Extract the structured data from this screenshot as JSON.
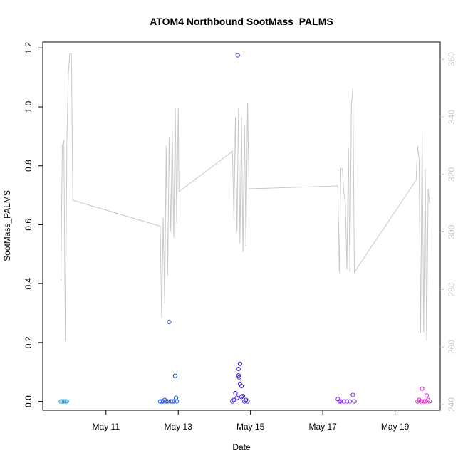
{
  "chart_data": {
    "type": "scatter",
    "title": "ATOM4 Northbound SootMass_PALMS",
    "xlabel": "Date",
    "ylabel": "SootMass_PALMS",
    "x_unit": "date (May 2018)",
    "xlim": [
      "2018-05-09 06:00",
      "2018-05-20 06:00"
    ],
    "ylim": [
      -0.03,
      1.22
    ],
    "y2lim": [
      238,
      366
    ],
    "grid": false,
    "x_ticks": [
      {
        "x": "2018-05-11",
        "label": "May 11"
      },
      {
        "x": "2018-05-13",
        "label": "May 13"
      },
      {
        "x": "2018-05-15",
        "label": "May 15"
      },
      {
        "x": "2018-05-17",
        "label": "May 17"
      },
      {
        "x": "2018-05-19",
        "label": "May 19"
      }
    ],
    "y_ticks": [
      "0.0",
      "0.2",
      "0.4",
      "0.6",
      "0.8",
      "1.0",
      "1.2"
    ],
    "y2_ticks": [
      "240",
      "260",
      "280",
      "300",
      "320",
      "340",
      "360"
    ],
    "series": [
      {
        "kind": "points",
        "color": "#29a3e0",
        "points": [
          [
            "2018-05-09 18:00",
            0
          ],
          [
            "2018-05-09 19:00",
            0
          ],
          [
            "2018-05-09 20:00",
            0
          ],
          [
            "2018-05-09 21:00",
            0
          ],
          [
            "2018-05-09 22:00",
            0
          ]
        ]
      },
      {
        "kind": "points",
        "color": "#1f52e6",
        "points": [
          [
            "2018-05-12 12:00",
            0
          ],
          [
            "2018-05-12 13:00",
            0
          ],
          [
            "2018-05-12 14:00",
            0
          ],
          [
            "2018-05-12 15:00",
            0.005
          ],
          [
            "2018-05-12 16:00",
            0
          ],
          [
            "2018-05-12 17:00",
            0
          ],
          [
            "2018-05-12 18:00",
            0.27
          ],
          [
            "2018-05-12 19:00",
            0
          ],
          [
            "2018-05-12 20:00",
            0
          ],
          [
            "2018-05-12 21:00",
            0
          ],
          [
            "2018-05-12 22:00",
            0.087
          ],
          [
            "2018-05-12 22:30",
            0.012
          ],
          [
            "2018-05-12 23:00",
            0
          ]
        ]
      },
      {
        "kind": "points",
        "color": "#3a1fe0",
        "points": [
          [
            "2018-05-14 12:00",
            0
          ],
          [
            "2018-05-14 13:00",
            0.005
          ],
          [
            "2018-05-14 14:00",
            0.028
          ],
          [
            "2018-05-14 15:00",
            0.012
          ],
          [
            "2018-05-14 15:30",
            1.175
          ],
          [
            "2018-05-14 16:00",
            0.11
          ],
          [
            "2018-05-14 16:00",
            0.088
          ],
          [
            "2018-05-14 16:30",
            0.082
          ],
          [
            "2018-05-14 17:00",
            0.128
          ],
          [
            "2018-05-14 17:00",
            0.06
          ],
          [
            "2018-05-14 18:00",
            0.052
          ],
          [
            "2018-05-14 18:00",
            0.015
          ],
          [
            "2018-05-14 19:00",
            0.018
          ],
          [
            "2018-05-14 20:00",
            0
          ],
          [
            "2018-05-14 21:00",
            0.005
          ],
          [
            "2018-05-14 22:00",
            0
          ]
        ]
      },
      {
        "kind": "points",
        "color": "#8a2be2",
        "points": [
          [
            "2018-05-17 10:00",
            0.008
          ],
          [
            "2018-05-17 11:00",
            0
          ],
          [
            "2018-05-17 12:00",
            0
          ],
          [
            "2018-05-17 14:00",
            0
          ],
          [
            "2018-05-17 16:00",
            0
          ],
          [
            "2018-05-17 18:00",
            0
          ],
          [
            "2018-05-17 20:00",
            0.022
          ],
          [
            "2018-05-17 21:00",
            0
          ]
        ]
      },
      {
        "kind": "points",
        "color": "#e01fc8",
        "points": [
          [
            "2018-05-19 15:00",
            0
          ],
          [
            "2018-05-19 16:00",
            0.005
          ],
          [
            "2018-05-19 17:00",
            0
          ],
          [
            "2018-05-19 18:00",
            0.043
          ],
          [
            "2018-05-19 19:00",
            0
          ],
          [
            "2018-05-19 20:00",
            0
          ],
          [
            "2018-05-19 21:00",
            0.02
          ],
          [
            "2018-05-19 22:00",
            0.005
          ],
          [
            "2018-05-19 23:00",
            0
          ]
        ]
      },
      {
        "kind": "line",
        "axis": "right",
        "color": "#c8c8c8",
        "points": [
          [
            "2018-05-09 18:00",
            283
          ],
          [
            "2018-05-09 19:00",
            330
          ],
          [
            "2018-05-09 20:00",
            332
          ],
          [
            "2018-05-09 21:00",
            262
          ],
          [
            "2018-05-09 22:00",
            330
          ],
          [
            "2018-05-09 23:00",
            355
          ],
          [
            "2018-05-10 00:00",
            362
          ],
          [
            "2018-05-10 01:00",
            362
          ],
          [
            "2018-05-10 02:00",
            311
          ],
          [
            "2018-05-12 12:00",
            302
          ],
          [
            "2018-05-12 13:00",
            270
          ],
          [
            "2018-05-12 14:00",
            305
          ],
          [
            "2018-05-12 15:00",
            275
          ],
          [
            "2018-05-12 16:00",
            330
          ],
          [
            "2018-05-12 17:00",
            285
          ],
          [
            "2018-05-12 18:00",
            333
          ],
          [
            "2018-05-12 19:00",
            300
          ],
          [
            "2018-05-12 20:00",
            335
          ],
          [
            "2018-05-12 21:00",
            298
          ],
          [
            "2018-05-12 22:00",
            343
          ],
          [
            "2018-05-12 23:00",
            303
          ],
          [
            "2018-05-13 00:00",
            343
          ],
          [
            "2018-05-13 00:30",
            314
          ],
          [
            "2018-05-14 12:00",
            328
          ],
          [
            "2018-05-14 13:00",
            304
          ],
          [
            "2018-05-14 14:00",
            340
          ],
          [
            "2018-05-14 15:00",
            300
          ],
          [
            "2018-05-14 16:00",
            343
          ],
          [
            "2018-05-14 17:00",
            296
          ],
          [
            "2018-05-14 18:00",
            340
          ],
          [
            "2018-05-14 19:00",
            293
          ],
          [
            "2018-05-14 20:00",
            337
          ],
          [
            "2018-05-14 21:00",
            295
          ],
          [
            "2018-05-14 22:00",
            345
          ],
          [
            "2018-05-14 23:00",
            315
          ],
          [
            "2018-05-17 10:00",
            316
          ],
          [
            "2018-05-17 11:00",
            286
          ],
          [
            "2018-05-17 12:00",
            322
          ],
          [
            "2018-05-17 13:00",
            322
          ],
          [
            "2018-05-17 14:00",
            314
          ],
          [
            "2018-05-17 15:00",
            310
          ],
          [
            "2018-05-17 16:00",
            287
          ],
          [
            "2018-05-17 17:00",
            329
          ],
          [
            "2018-05-17 18:00",
            286
          ],
          [
            "2018-05-17 19:00",
            344
          ],
          [
            "2018-05-17 20:00",
            350
          ],
          [
            "2018-05-17 21:00",
            286
          ],
          [
            "2018-05-19 14:00",
            318
          ],
          [
            "2018-05-19 15:00",
            330
          ],
          [
            "2018-05-19 16:00",
            325
          ],
          [
            "2018-05-19 17:00",
            265
          ],
          [
            "2018-05-19 18:00",
            335
          ],
          [
            "2018-05-19 19:00",
            265
          ],
          [
            "2018-05-19 20:00",
            322
          ],
          [
            "2018-05-19 21:00",
            262
          ],
          [
            "2018-05-19 22:00",
            315
          ],
          [
            "2018-05-19 23:00",
            310
          ]
        ]
      }
    ]
  }
}
